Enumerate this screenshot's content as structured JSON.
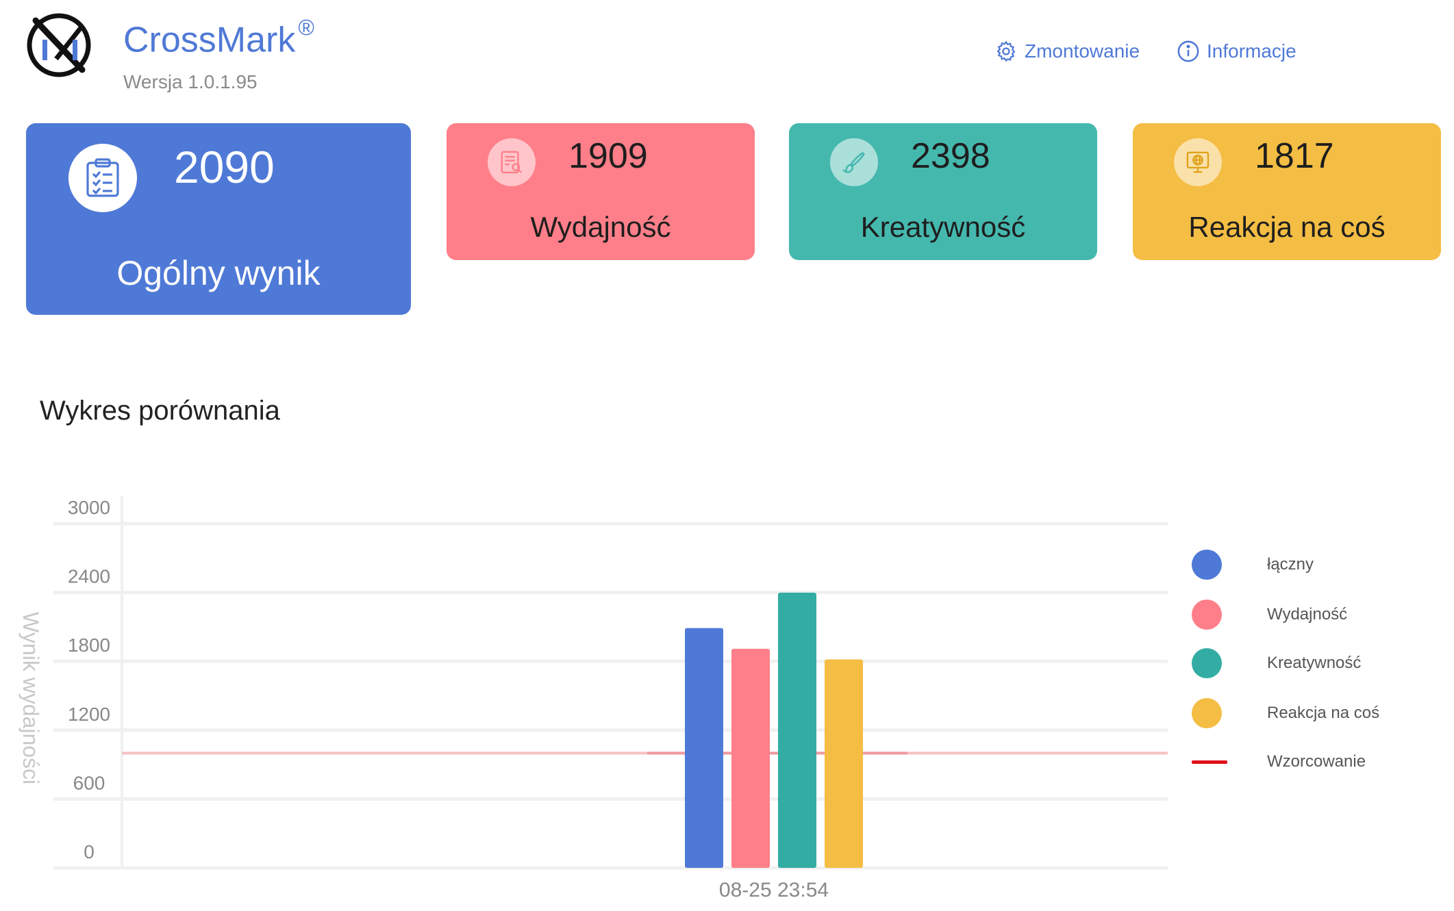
{
  "header": {
    "app_name": "CrossMark",
    "trademark": "®",
    "version": "Wersja 1.0.1.95",
    "settings_label": "Zmontowanie",
    "info_label": "Informacje",
    "settings_icon": "gear-icon",
    "info_icon": "info-icon",
    "brand_color": "#4f79d6"
  },
  "cards": {
    "total": {
      "value": "2090",
      "label": "Ogólny wynik",
      "icon": "clipboard-checklist-icon",
      "color": "#4f79d6"
    },
    "performance": {
      "value": "1909",
      "label": "Wydajność",
      "icon": "document-search-icon",
      "color": "#fe7f89"
    },
    "creativity": {
      "value": "2398",
      "label": "Kreatywność",
      "icon": "brush-icon",
      "color": "#45b8ae"
    },
    "reaction": {
      "value": "1817",
      "label": "Reakcja na coś",
      "icon": "monitor-globe-icon",
      "color": "#f4bd43"
    }
  },
  "section_title": "Wykres porównania",
  "chart_data": {
    "type": "bar",
    "ylabel": "Wynik wydajności",
    "xlabel": "",
    "ylim": [
      0,
      3000
    ],
    "yticks": [
      "0",
      "600",
      "1200",
      "1800",
      "2400",
      "3000"
    ],
    "categories": [
      "08-25 23:54"
    ],
    "series": [
      {
        "name": "łączny",
        "values": [
          2090
        ],
        "color": "#4f79d6"
      },
      {
        "name": "Wydajność",
        "values": [
          1909
        ],
        "color": "#fe7f89"
      },
      {
        "name": "Kreatywność",
        "values": [
          2398
        ],
        "color": "#33ada3"
      },
      {
        "name": "Reakcja na coś",
        "values": [
          1817
        ],
        "color": "#f4bd43"
      }
    ],
    "reference_line": {
      "name": "Wzorcowanie",
      "value": 1000,
      "color": "#e0101a"
    },
    "legend_position": "right",
    "grid": true
  }
}
